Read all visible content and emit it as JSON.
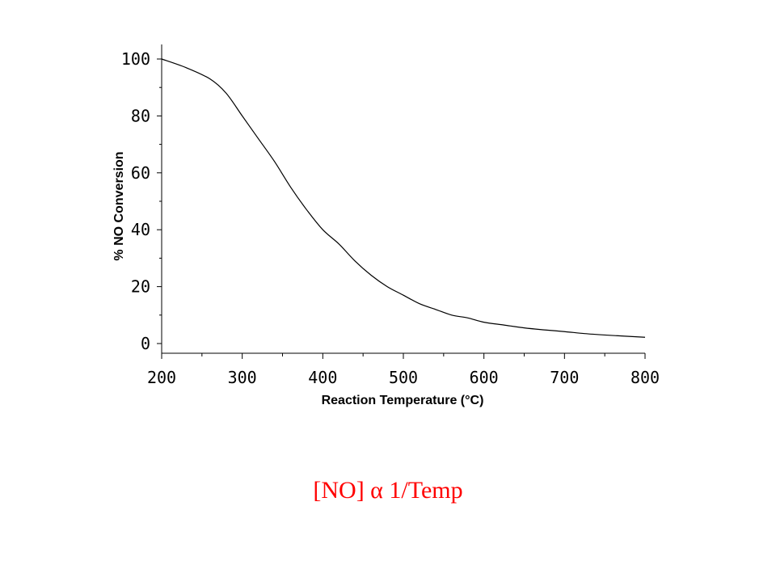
{
  "chart_data": {
    "type": "line",
    "xlabel": "Reaction Temperature (°C)",
    "ylabel": "% NO Conversion",
    "xlim": [
      200,
      800
    ],
    "ylim": [
      0,
      100
    ],
    "xticks": [
      200,
      300,
      400,
      500,
      600,
      700,
      800
    ],
    "yticks": [
      0,
      20,
      40,
      60,
      80,
      100
    ],
    "x_minor_step": 50,
    "y_minor_step": 10,
    "grid": false,
    "line_color": "#000000",
    "series": [
      {
        "x": [
          200,
          230,
          260,
          280,
          300,
          320,
          340,
          360,
          380,
          400,
          420,
          440,
          460,
          480,
          500,
          520,
          540,
          560,
          580,
          600,
          625,
          650,
          675,
          700,
          725,
          750,
          775,
          800
        ],
        "y": [
          100,
          97,
          93,
          88,
          80,
          72,
          64,
          55,
          47,
          40,
          35,
          29,
          24,
          20,
          17,
          14,
          12,
          10,
          9,
          7.5,
          6.5,
          5.5,
          4.8,
          4.2,
          3.5,
          3.0,
          2.6,
          2.2
        ]
      }
    ]
  },
  "caption": {
    "text": "[NO] α 1/Temp",
    "color": "#ff0000"
  }
}
